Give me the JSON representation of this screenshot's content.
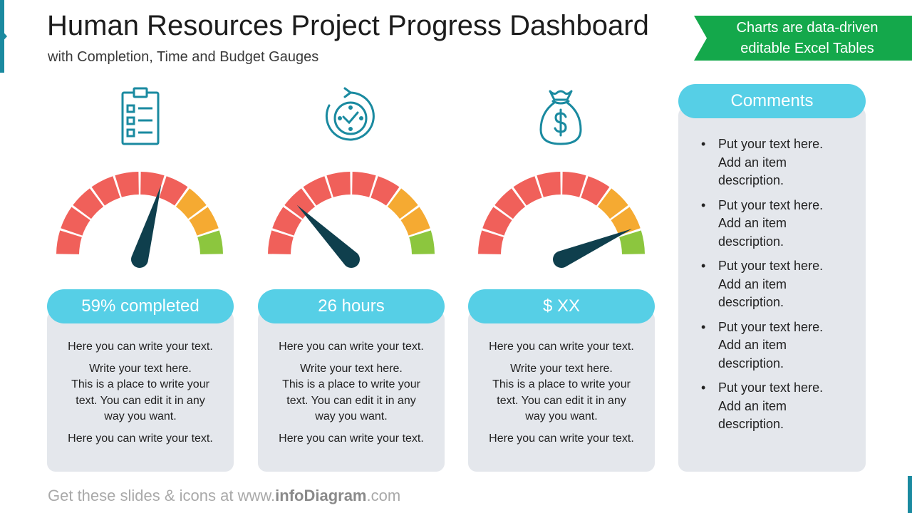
{
  "header": {
    "title": "Human Resources Project Progress Dashboard",
    "subtitle": "with Completion, Time and Budget Gauges",
    "banner_line1": "Charts are data-driven",
    "banner_line2": "editable Excel Tables"
  },
  "gauges": [
    {
      "icon": "checklist-icon",
      "label": "59% completed",
      "needle_value": 0.59,
      "text1": "Here you can write your text.",
      "text2a": "Write your text here.",
      "text2b": "This is a place to write your",
      "text2c": "text. You can edit it in any",
      "text2d": "way you want.",
      "text3": "Here you can write your text."
    },
    {
      "icon": "clock-refresh-icon",
      "label": "26 hours",
      "needle_value": 0.25,
      "text1": "Here you can write your text.",
      "text2a": "Write your text here.",
      "text2b": "This is a place to write your",
      "text2c": "text. You can edit it in any",
      "text2d": "way you want.",
      "text3": "Here you can write your text."
    },
    {
      "icon": "money-bag-icon",
      "label": "$ XX",
      "needle_value": 0.87,
      "text1": "Here you can write your text.",
      "text2a": "Write your text here.",
      "text2b": "This is a place to write your",
      "text2c": "text. You can edit it in any",
      "text2d": "way you want.",
      "text3": "Here you can write your text."
    }
  ],
  "gauge_colors": [
    "#f0605a",
    "#f0605a",
    "#f0605a",
    "#f0605a",
    "#f0605a",
    "#f0605a",
    "#f0605a",
    "#f5aa32",
    "#f5aa32",
    "#8cc63e"
  ],
  "needle_color": "#0f3f4d",
  "comments": {
    "title": "Comments",
    "items": [
      {
        "a": "Put your text here.",
        "b": "Add an item",
        "c": "description."
      },
      {
        "a": "Put your text here.",
        "b": "Add an item",
        "c": "description."
      },
      {
        "a": "Put your text here.",
        "b": "Add an item",
        "c": "description."
      },
      {
        "a": "Put your text here.",
        "b": "Add an item",
        "c": "description."
      },
      {
        "a": "Put your text here.",
        "b": "Add an item",
        "c": "description."
      }
    ]
  },
  "footer": {
    "prefix": "Get these slides & icons at www.",
    "brand": "infoDiagram",
    "suffix": ".com"
  }
}
